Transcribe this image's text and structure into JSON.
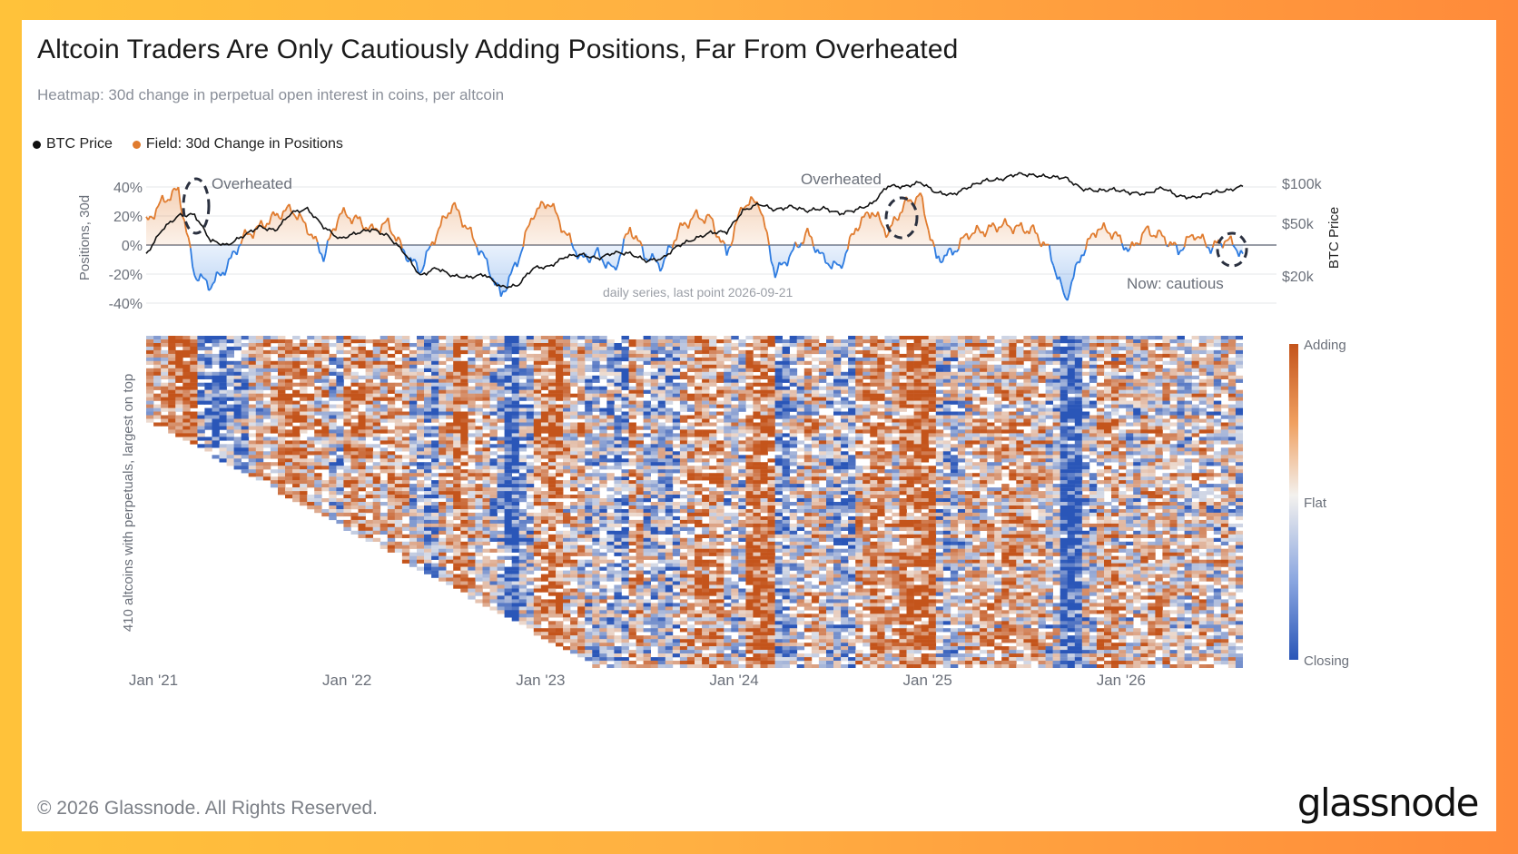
{
  "header": {
    "title": "Altcoin Traders Are Only Cautiously Adding Positions, Far From Overheated",
    "subtitle": "Heatmap: 30d change in perpetual open interest in coins, per altcoin"
  },
  "legend": [
    {
      "label": "BTC Price",
      "color": "#111111"
    },
    {
      "label": "Field: 30d Change in Positions",
      "color": "#e07b2e"
    }
  ],
  "colors": {
    "positive": "#e07b2e",
    "negative": "#2d7be0",
    "btc": "#111111",
    "heat_adding": "#c4541b",
    "heat_flat": "#f3f1ee",
    "heat_closing": "#2a56b8"
  },
  "footer": {
    "copyright": "© 2026 Glassnode. All Rights Reserved.",
    "logo": "glassnode"
  },
  "chart_data": [
    {
      "type": "line",
      "left_axis_label": "Positions, 30d",
      "left_ticks": [
        "40%",
        "20%",
        "0%",
        "-20%",
        "-40%"
      ],
      "left_range": [
        -40,
        40
      ],
      "right_axis_label": "BTC Price",
      "right_ticks": [
        "$100k",
        "$50k",
        "$20k"
      ],
      "right_scale": "log",
      "note": "daily series, last point 2026-09-21",
      "annotations": [
        "Overheated",
        "Overheated",
        "Now: cautious"
      ],
      "series": [
        {
          "name": "Field: 30d Change in Positions",
          "x": [
            "2021-01",
            "2021-02",
            "2021-03",
            "2021-04",
            "2021-05",
            "2021-06",
            "2021-07",
            "2021-08",
            "2021-09",
            "2021-10",
            "2021-11",
            "2021-12",
            "2022-01",
            "2022-02",
            "2022-03",
            "2022-04",
            "2022-05",
            "2022-06",
            "2022-07",
            "2022-08",
            "2022-09",
            "2022-10",
            "2022-11",
            "2022-12",
            "2023-01",
            "2023-02",
            "2023-03",
            "2023-04",
            "2023-05",
            "2023-06",
            "2023-07",
            "2023-08",
            "2023-09",
            "2023-10",
            "2023-11",
            "2023-12",
            "2024-01",
            "2024-02",
            "2024-03",
            "2024-04",
            "2024-05",
            "2024-06",
            "2024-07",
            "2024-08",
            "2024-09",
            "2024-10",
            "2024-11",
            "2024-12",
            "2025-01",
            "2025-02",
            "2025-03",
            "2025-04",
            "2025-05",
            "2025-06",
            "2025-07",
            "2025-08",
            "2025-09",
            "2025-10",
            "2025-11",
            "2025-12",
            "2026-01",
            "2026-02",
            "2026-03",
            "2026-04",
            "2026-05",
            "2026-06",
            "2026-07",
            "2026-08",
            "2026-09"
          ],
          "values": [
            15,
            30,
            38,
            -20,
            -28,
            -15,
            5,
            12,
            20,
            25,
            12,
            -8,
            22,
            18,
            10,
            15,
            -5,
            -18,
            8,
            28,
            10,
            -10,
            -35,
            -12,
            22,
            30,
            8,
            -10,
            -6,
            -18,
            12,
            -8,
            -14,
            10,
            20,
            18,
            -6,
            28,
            30,
            -20,
            -6,
            8,
            -10,
            -16,
            12,
            24,
            8,
            28,
            34,
            -10,
            -5,
            8,
            10,
            14,
            12,
            10,
            -4,
            -38,
            -6,
            12,
            8,
            -4,
            10,
            6,
            -4,
            8,
            -2,
            4,
            -6
          ]
        },
        {
          "name": "BTC Price",
          "x": [
            "2021-01",
            "2021-02",
            "2021-03",
            "2021-04",
            "2021-05",
            "2021-06",
            "2021-07",
            "2021-08",
            "2021-09",
            "2021-10",
            "2021-11",
            "2021-12",
            "2022-01",
            "2022-02",
            "2022-03",
            "2022-04",
            "2022-05",
            "2022-06",
            "2022-07",
            "2022-08",
            "2022-09",
            "2022-10",
            "2022-11",
            "2022-12",
            "2023-01",
            "2023-02",
            "2023-03",
            "2023-04",
            "2023-05",
            "2023-06",
            "2023-07",
            "2023-08",
            "2023-09",
            "2023-10",
            "2023-11",
            "2023-12",
            "2024-01",
            "2024-02",
            "2024-03",
            "2024-04",
            "2024-05",
            "2024-06",
            "2024-07",
            "2024-08",
            "2024-09",
            "2024-10",
            "2024-11",
            "2024-12",
            "2025-01",
            "2025-02",
            "2025-03",
            "2025-04",
            "2025-05",
            "2025-06",
            "2025-07",
            "2025-08",
            "2025-09",
            "2025-10",
            "2025-11",
            "2025-12",
            "2026-01",
            "2026-02",
            "2026-03",
            "2026-04",
            "2026-05",
            "2026-06",
            "2026-07",
            "2026-08",
            "2026-09"
          ],
          "values": [
            29000,
            45000,
            57000,
            58000,
            37000,
            34000,
            40000,
            47000,
            44000,
            60000,
            64000,
            47000,
            38000,
            42000,
            45000,
            40000,
            30000,
            20000,
            23000,
            20000,
            19500,
            20500,
            16500,
            16800,
            23000,
            23500,
            28000,
            29000,
            27000,
            30000,
            29500,
            26000,
            27000,
            34000,
            38000,
            42500,
            43000,
            62000,
            70000,
            63000,
            67000,
            62000,
            65000,
            59000,
            63000,
            70000,
            96000,
            94000,
            102000,
            85000,
            82000,
            94000,
            105000,
            107000,
            118000,
            115000,
            112000,
            110000,
            91000,
            88000,
            90000,
            85000,
            83000,
            93000,
            80000,
            78000,
            85000,
            88000,
            95000
          ]
        }
      ]
    },
    {
      "type": "heatmap",
      "y_label": "410 altcoins with perpetuals, largest on top",
      "x_ticks": [
        "Jan '21",
        "Jan '22",
        "Jan '23",
        "Jan '24",
        "Jan '25",
        "Jan '26"
      ],
      "rows": 410,
      "colorbar": [
        "Adding",
        "Flat",
        "Closing"
      ]
    }
  ]
}
